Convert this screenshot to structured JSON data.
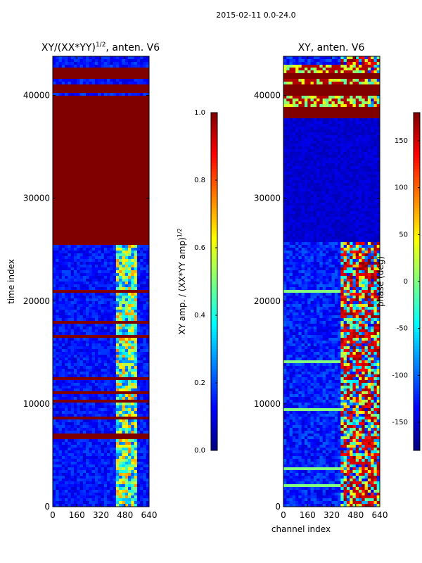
{
  "suptitle": "2015-02-11 0.0-24.0",
  "chart_data": [
    {
      "type": "heatmap",
      "title": "XY/(XX*YY)^1/2, anten. V6",
      "xlabel": "",
      "ylabel": "time index",
      "xlim": [
        0,
        640
      ],
      "ylim": [
        0,
        43800
      ],
      "x_ticks": [
        "0",
        "160",
        "320",
        "480",
        "640"
      ],
      "y_ticks": [
        "0",
        "10000",
        "20000",
        "30000",
        "40000"
      ],
      "colorbar": {
        "label": "XY amp. / (XX*YY amp)^1/2",
        "range": [
          0.0,
          1.0
        ],
        "ticks": [
          "0.0",
          "0.2",
          "0.4",
          "0.6",
          "0.8",
          "1.0"
        ]
      },
      "saturated_time_ranges": [
        [
          25800,
          39800
        ],
        [
          40300,
          41000
        ],
        [
          41600,
          42800
        ],
        [
          6600,
          7000
        ]
      ]
    },
    {
      "type": "heatmap",
      "title": "XY, anten. V6",
      "xlabel": "channel index",
      "ylabel": "",
      "xlim": [
        0,
        640
      ],
      "ylim": [
        0,
        43800
      ],
      "x_ticks": [
        "0",
        "160",
        "320",
        "480",
        "640"
      ],
      "y_ticks": [
        "0",
        "10000",
        "20000",
        "30000",
        "40000"
      ],
      "colorbar": {
        "label": "phase (deg)",
        "range": [
          -180,
          180
        ],
        "ticks": [
          "-150",
          "-100",
          "-50",
          "0",
          "50",
          "100",
          "150"
        ]
      },
      "saturated_time_ranges": [
        [
          37800,
          38800
        ],
        [
          40000,
          41000
        ],
        [
          41600,
          42200
        ]
      ]
    }
  ]
}
